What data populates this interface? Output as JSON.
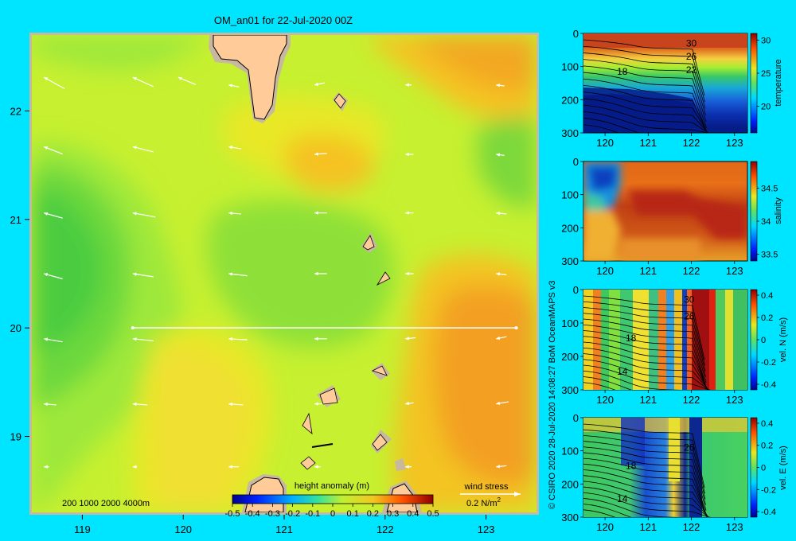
{
  "background_color": "#00e5ff",
  "land_color": "#ffcc99",
  "land_shadow_color": "#c8b8a0",
  "vector_color": "#ffffff",
  "credit": "© CSIRO 2020   28-Jul-2020 14:08:27 BoM OceanMAPS v3",
  "chart_data": [
    {
      "type": "heatmap",
      "title": "OM_an01 for 22-Jul-2020 00Z",
      "xlabel": "",
      "ylabel": "",
      "x_ticks": [
        119,
        120,
        121,
        122,
        123
      ],
      "y_ticks": [
        19,
        20,
        21,
        22
      ],
      "xlim": [
        118.5,
        123.5
      ],
      "ylim": [
        18.3,
        22.7
      ],
      "colorbar": {
        "label": "height anomaly (m)",
        "ticks": [
          "-0.5",
          "-0.4",
          "-0.3",
          "-0.2",
          "-0.1",
          "0",
          "0.1",
          "0.2",
          "0.3",
          "0.4",
          "0.5"
        ],
        "range": [
          -0.5,
          0.5
        ]
      },
      "bathymetry_legend": [
        "200",
        "1000",
        "2000",
        "4000m"
      ],
      "wind_stress_legend": {
        "label": "wind stress",
        "value": "0.2 N/m",
        "unit_exponent": "2"
      },
      "section_line": {
        "lat": 20,
        "lon_start": 119.5,
        "lon_end": 123.3
      },
      "vectors": [
        {
          "lon": 118.62,
          "lat": 22.31,
          "u": -1.0,
          "v": 0.55
        },
        {
          "lon": 119.5,
          "lat": 22.31,
          "u": -1.0,
          "v": 0.45
        },
        {
          "lon": 119.95,
          "lat": 22.31,
          "u": -0.85,
          "v": 0.35
        },
        {
          "lon": 120.45,
          "lat": 22.24,
          "u": -0.5,
          "v": 0.1
        },
        {
          "lon": 121.3,
          "lat": 22.24,
          "u": -0.5,
          "v": -0.1
        },
        {
          "lon": 122.2,
          "lat": 22.24,
          "u": -0.3,
          "v": 0
        },
        {
          "lon": 123.1,
          "lat": 22.24,
          "u": -0.4,
          "v": 0.05
        },
        {
          "lon": 118.62,
          "lat": 21.67,
          "u": -0.9,
          "v": 0.35
        },
        {
          "lon": 119.5,
          "lat": 21.67,
          "u": -1.0,
          "v": 0.25
        },
        {
          "lon": 120.45,
          "lat": 21.67,
          "u": -0.6,
          "v": 0.1
        },
        {
          "lon": 121.3,
          "lat": 21.6,
          "u": -0.6,
          "v": -0.05
        },
        {
          "lon": 122.2,
          "lat": 21.6,
          "u": -0.4,
          "v": 0
        },
        {
          "lon": 123.1,
          "lat": 21.6,
          "u": -0.4,
          "v": 0.05
        },
        {
          "lon": 118.62,
          "lat": 21.06,
          "u": -0.9,
          "v": 0.25
        },
        {
          "lon": 119.5,
          "lat": 21.06,
          "u": -1.1,
          "v": 0.2
        },
        {
          "lon": 120.45,
          "lat": 21.06,
          "u": -0.6,
          "v": 0.05
        },
        {
          "lon": 121.3,
          "lat": 21.06,
          "u": -0.6,
          "v": 0
        },
        {
          "lon": 122.2,
          "lat": 21.06,
          "u": -0.4,
          "v": 0
        },
        {
          "lon": 123.1,
          "lat": 21.06,
          "u": -0.5,
          "v": 0.05
        },
        {
          "lon": 118.62,
          "lat": 20.5,
          "u": -0.9,
          "v": 0.25
        },
        {
          "lon": 119.5,
          "lat": 20.5,
          "u": -1.0,
          "v": 0.15
        },
        {
          "lon": 120.45,
          "lat": 20.5,
          "u": -0.9,
          "v": 0.1
        },
        {
          "lon": 121.3,
          "lat": 20.5,
          "u": -0.6,
          "v": 0
        },
        {
          "lon": 122.2,
          "lat": 20.5,
          "u": -0.4,
          "v": 0
        },
        {
          "lon": 123.1,
          "lat": 20.5,
          "u": -0.5,
          "v": 0.05
        },
        {
          "lon": 118.62,
          "lat": 19.9,
          "u": -0.9,
          "v": 0.15
        },
        {
          "lon": 119.5,
          "lat": 19.9,
          "u": -1.0,
          "v": 0.1
        },
        {
          "lon": 120.45,
          "lat": 19.9,
          "u": -0.9,
          "v": 0.05
        },
        {
          "lon": 121.3,
          "lat": 19.9,
          "u": -0.6,
          "v": 0
        },
        {
          "lon": 122.2,
          "lat": 19.9,
          "u": -0.5,
          "v": -0.05
        },
        {
          "lon": 123.1,
          "lat": 19.9,
          "u": -0.5,
          "v": -0.1
        },
        {
          "lon": 118.62,
          "lat": 19.3,
          "u": -0.6,
          "v": 0.05
        },
        {
          "lon": 119.5,
          "lat": 19.3,
          "u": -0.7,
          "v": 0.05
        },
        {
          "lon": 120.45,
          "lat": 19.3,
          "u": -0.7,
          "v": 0.05
        },
        {
          "lon": 121.3,
          "lat": 19.3,
          "u": -0.4,
          "v": 0
        },
        {
          "lon": 122.2,
          "lat": 19.3,
          "u": -0.4,
          "v": -0.05
        },
        {
          "lon": 123.1,
          "lat": 19.3,
          "u": -0.6,
          "v": -0.1
        },
        {
          "lon": 118.62,
          "lat": 18.72,
          "u": -0.25,
          "v": 0
        },
        {
          "lon": 119.5,
          "lat": 18.72,
          "u": -0.2,
          "v": 0
        },
        {
          "lon": 120.45,
          "lat": 18.72,
          "u": -0.5,
          "v": 0
        },
        {
          "lon": 121.3,
          "lat": 18.72,
          "u": -0.3,
          "v": 0
        },
        {
          "lon": 122.2,
          "lat": 18.72,
          "u": -0.3,
          "v": 0
        },
        {
          "lon": 123.1,
          "lat": 18.72,
          "u": -0.5,
          "v": -0.05
        }
      ]
    },
    {
      "type": "heatmap",
      "title": "",
      "xlabel": "",
      "ylabel": "",
      "x_ticks": [
        120,
        121,
        122,
        123
      ],
      "y_ticks": [
        0,
        100,
        200,
        300
      ],
      "xlim": [
        119.5,
        123.3
      ],
      "ylim": [
        300,
        0
      ],
      "colorbar": {
        "label": "temperature",
        "ticks": [
          "20",
          "25",
          "30"
        ],
        "range": [
          16,
          31
        ]
      },
      "contour_labels": [
        {
          "text": "30",
          "x": 122.0,
          "y": 30
        },
        {
          "text": "26",
          "x": 122.0,
          "y": 70
        },
        {
          "text": "22",
          "x": 122.0,
          "y": 110
        },
        {
          "text": "18",
          "x": 120.4,
          "y": 115
        }
      ]
    },
    {
      "type": "heatmap",
      "title": "",
      "xlabel": "",
      "ylabel": "",
      "x_ticks": [
        120,
        121,
        122,
        123
      ],
      "y_ticks": [
        0,
        100,
        200,
        300
      ],
      "xlim": [
        119.5,
        123.3
      ],
      "ylim": [
        300,
        0
      ],
      "colorbar": {
        "label": "salinity",
        "ticks": [
          "33.5",
          "34",
          "34.5"
        ],
        "range": [
          33.4,
          34.9
        ]
      }
    },
    {
      "type": "heatmap",
      "title": "",
      "xlabel": "",
      "ylabel": "",
      "x_ticks": [
        120,
        121,
        122,
        123
      ],
      "y_ticks": [
        0,
        100,
        200,
        300
      ],
      "xlim": [
        119.5,
        123.3
      ],
      "ylim": [
        300,
        0
      ],
      "colorbar": {
        "label": "vel. N (m/s)",
        "ticks": [
          "-0.4",
          "-0.2",
          "0",
          "0.2",
          "0.4"
        ],
        "range": [
          -0.45,
          0.45
        ]
      },
      "contour_labels": [
        {
          "text": "30",
          "x": 121.95,
          "y": 30
        },
        {
          "text": "26",
          "x": 121.95,
          "y": 80
        },
        {
          "text": "18",
          "x": 120.6,
          "y": 145
        },
        {
          "text": "14",
          "x": 120.4,
          "y": 245
        }
      ]
    },
    {
      "type": "heatmap",
      "title": "",
      "xlabel": "",
      "ylabel": "",
      "x_ticks": [
        120,
        121,
        122,
        123
      ],
      "y_ticks": [
        0,
        100,
        200,
        300
      ],
      "xlim": [
        119.5,
        123.3
      ],
      "ylim": [
        300,
        0
      ],
      "colorbar": {
        "label": "vel. E (m/s)",
        "ticks": [
          "-0.4",
          "-0.2",
          "0",
          "0.2",
          "0.4"
        ],
        "range": [
          -0.45,
          0.45
        ]
      },
      "contour_labels": [
        {
          "text": "26",
          "x": 121.95,
          "y": 90
        },
        {
          "text": "18",
          "x": 120.6,
          "y": 145
        },
        {
          "text": "14",
          "x": 120.4,
          "y": 245
        }
      ]
    }
  ]
}
